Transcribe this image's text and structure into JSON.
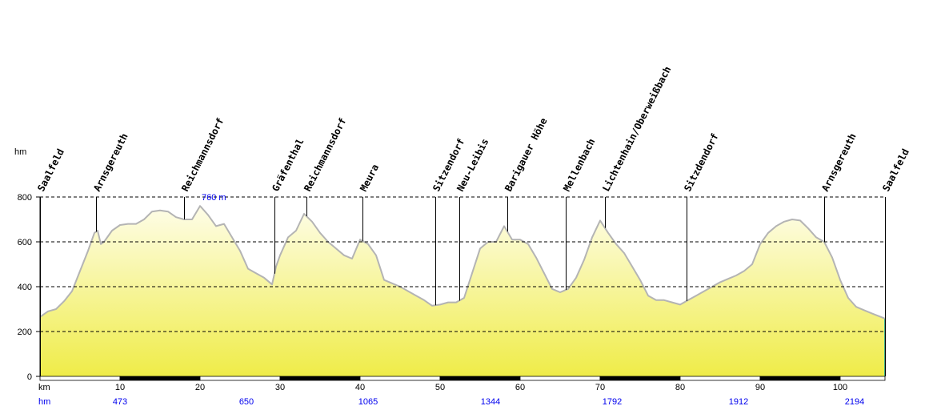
{
  "chart_data": {
    "type": "area",
    "title": "",
    "xlabel": "km",
    "ylabel": "hm",
    "xlim": [
      0,
      105.6
    ],
    "ylim": [
      0,
      800
    ],
    "yticks": [
      0,
      200,
      400,
      600,
      800
    ],
    "xticks": [
      10,
      20,
      30,
      40,
      50,
      60,
      70,
      80,
      90,
      100
    ],
    "grid": true,
    "max_label": "760 m",
    "max_km": 20,
    "profile": [
      [
        0,
        265
      ],
      [
        1,
        290
      ],
      [
        2,
        300
      ],
      [
        3,
        335
      ],
      [
        4,
        380
      ],
      [
        5,
        470
      ],
      [
        6,
        560
      ],
      [
        6.8,
        640
      ],
      [
        7.2,
        650
      ],
      [
        7.6,
        590
      ],
      [
        8,
        600
      ],
      [
        9,
        650
      ],
      [
        10,
        675
      ],
      [
        11,
        680
      ],
      [
        12,
        680
      ],
      [
        13,
        700
      ],
      [
        14,
        735
      ],
      [
        15,
        740
      ],
      [
        16,
        735
      ],
      [
        17,
        710
      ],
      [
        18,
        700
      ],
      [
        19,
        700
      ],
      [
        20,
        760
      ],
      [
        21,
        720
      ],
      [
        22,
        670
      ],
      [
        23,
        680
      ],
      [
        24,
        620
      ],
      [
        25,
        560
      ],
      [
        26,
        480
      ],
      [
        27,
        460
      ],
      [
        28,
        440
      ],
      [
        29,
        410
      ],
      [
        29.5,
        490
      ],
      [
        30,
        540
      ],
      [
        31,
        620
      ],
      [
        32,
        650
      ],
      [
        33,
        725
      ],
      [
        34,
        690
      ],
      [
        35,
        640
      ],
      [
        36,
        600
      ],
      [
        37,
        570
      ],
      [
        38,
        540
      ],
      [
        39,
        525
      ],
      [
        40,
        610
      ],
      [
        41,
        590
      ],
      [
        42,
        540
      ],
      [
        43,
        430
      ],
      [
        44,
        415
      ],
      [
        45,
        400
      ],
      [
        46,
        380
      ],
      [
        47,
        360
      ],
      [
        48,
        340
      ],
      [
        49,
        315
      ],
      [
        50,
        320
      ],
      [
        51,
        330
      ],
      [
        52,
        330
      ],
      [
        53,
        350
      ],
      [
        54,
        460
      ],
      [
        55,
        570
      ],
      [
        56,
        600
      ],
      [
        57,
        600
      ],
      [
        58,
        670
      ],
      [
        59,
        610
      ],
      [
        60,
        610
      ],
      [
        61,
        590
      ],
      [
        62,
        530
      ],
      [
        63,
        460
      ],
      [
        64,
        390
      ],
      [
        65,
        375
      ],
      [
        66,
        390
      ],
      [
        67,
        440
      ],
      [
        68,
        520
      ],
      [
        69,
        620
      ],
      [
        70,
        695
      ],
      [
        71,
        640
      ],
      [
        72,
        590
      ],
      [
        73,
        550
      ],
      [
        74,
        490
      ],
      [
        75,
        430
      ],
      [
        76,
        360
      ],
      [
        77,
        340
      ],
      [
        78,
        340
      ],
      [
        79,
        330
      ],
      [
        80,
        320
      ],
      [
        81,
        340
      ],
      [
        82,
        360
      ],
      [
        83,
        380
      ],
      [
        84,
        400
      ],
      [
        85,
        420
      ],
      [
        86,
        435
      ],
      [
        87,
        450
      ],
      [
        88,
        470
      ],
      [
        89,
        500
      ],
      [
        90,
        590
      ],
      [
        91,
        640
      ],
      [
        92,
        670
      ],
      [
        93,
        690
      ],
      [
        94,
        700
      ],
      [
        95,
        695
      ],
      [
        96,
        660
      ],
      [
        97,
        620
      ],
      [
        98,
        600
      ],
      [
        99,
        530
      ],
      [
        100,
        430
      ],
      [
        101,
        350
      ],
      [
        102,
        310
      ],
      [
        103,
        295
      ],
      [
        104,
        280
      ],
      [
        105.6,
        258
      ]
    ],
    "waypoints": [
      {
        "name": "Saalfeld",
        "km": 0
      },
      {
        "name": "Arnsgereuth",
        "km": 7
      },
      {
        "name": "Reichmannsdorf",
        "km": 18
      },
      {
        "name": "Gräfenthal",
        "km": 29.3
      },
      {
        "name": "Reichmannsdorf",
        "km": 33.3
      },
      {
        "name": "Meura",
        "km": 40.3
      },
      {
        "name": "Sitzendorf",
        "km": 49.4
      },
      {
        "name": "Neu-Leibis",
        "km": 52.4
      },
      {
        "name": "Barigauer Höhe",
        "km": 58.4
      },
      {
        "name": "Mellenbach",
        "km": 65.7
      },
      {
        "name": "Lichtenhain/Oberweißbach",
        "km": 70.6
      },
      {
        "name": "Sitzdendorf",
        "km": 80.8
      },
      {
        "name": "Arnsgereuth",
        "km": 98
      },
      {
        "name": "Saalfeld",
        "km": 105.6
      }
    ],
    "ascent_row_label": "hm",
    "ascent": [
      {
        "km": 10,
        "value": "473"
      },
      {
        "km": 25.8,
        "value": "650"
      },
      {
        "km": 41,
        "value": "1065"
      },
      {
        "km": 56.3,
        "value": "1344"
      },
      {
        "km": 71.5,
        "value": "1792"
      },
      {
        "km": 87.3,
        "value": "1912"
      },
      {
        "km": 101.8,
        "value": "2194"
      }
    ],
    "colors": {
      "line": "#b4b4b4",
      "fill_top": "#fefde8",
      "fill_bottom": "#efec48",
      "ascent": "#0000ee",
      "edge": "#009999"
    }
  }
}
